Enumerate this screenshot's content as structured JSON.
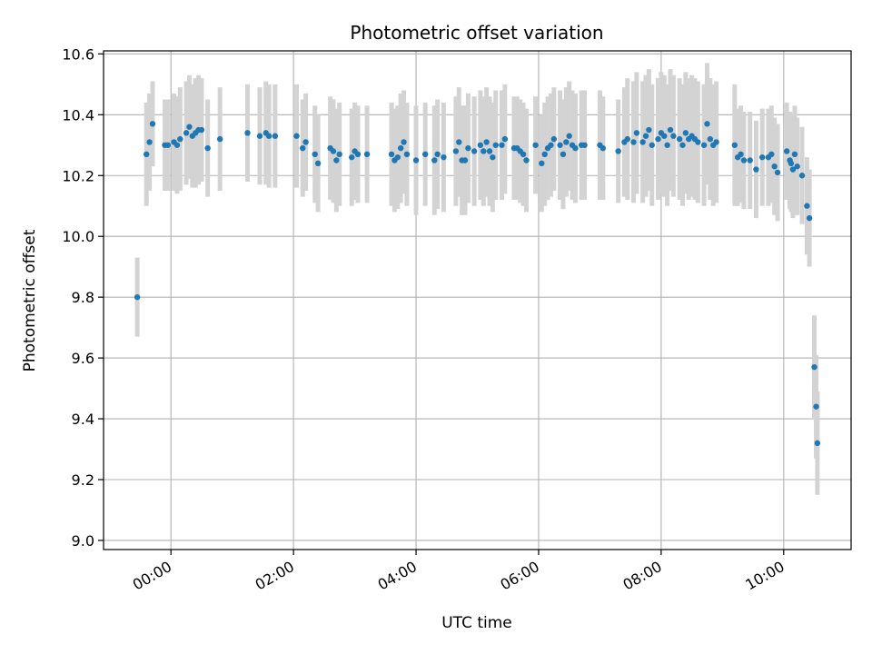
{
  "chart_data": {
    "type": "scatter",
    "title": "Photometric offset variation",
    "xlabel": "UTC time",
    "ylabel": "Photometric offset",
    "grid": true,
    "x_unit": "hours (UTC, relative to 00:00)",
    "xlim": [
      -1.1,
      11.1
    ],
    "ylim": [
      8.97,
      10.61
    ],
    "x_ticks": [
      0,
      2,
      4,
      6,
      8,
      10
    ],
    "x_tick_labels": [
      "00:00",
      "02:00",
      "04:00",
      "06:00",
      "08:00",
      "10:00"
    ],
    "y_ticks": [
      9.0,
      9.2,
      9.4,
      9.6,
      9.8,
      10.0,
      10.2,
      10.4,
      10.6
    ],
    "y_tick_labels": [
      "9.0",
      "9.2",
      "9.4",
      "9.6",
      "9.8",
      "10.0",
      "10.2",
      "10.4",
      "10.6"
    ],
    "colors": {
      "marker": "#1f77b4",
      "errorbar": "#d3d3d3",
      "grid": "#b0b0b0",
      "axis": "#000000"
    },
    "series": [
      {
        "name": "photometric offset",
        "x": [
          -0.55,
          -0.4,
          -0.35,
          -0.3,
          -0.1,
          -0.05,
          0.05,
          0.1,
          0.15,
          0.25,
          0.3,
          0.35,
          0.4,
          0.45,
          0.5,
          0.6,
          0.8,
          1.25,
          1.45,
          1.55,
          1.6,
          1.7,
          2.05,
          2.15,
          2.2,
          2.35,
          2.4,
          2.6,
          2.65,
          2.7,
          2.75,
          2.95,
          3.0,
          3.05,
          3.2,
          3.6,
          3.65,
          3.7,
          3.75,
          3.8,
          3.85,
          4.0,
          4.15,
          4.3,
          4.35,
          4.45,
          4.65,
          4.7,
          4.75,
          4.8,
          4.85,
          4.95,
          5.05,
          5.1,
          5.15,
          5.2,
          5.25,
          5.3,
          5.4,
          5.45,
          5.6,
          5.65,
          5.7,
          5.75,
          5.8,
          5.95,
          6.05,
          6.1,
          6.15,
          6.2,
          6.25,
          6.35,
          6.4,
          6.45,
          6.5,
          6.55,
          6.6,
          6.7,
          6.75,
          7.0,
          7.05,
          7.3,
          7.4,
          7.45,
          7.55,
          7.6,
          7.7,
          7.75,
          7.8,
          7.85,
          7.95,
          8.0,
          8.05,
          8.1,
          8.15,
          8.2,
          8.3,
          8.35,
          8.4,
          8.45,
          8.5,
          8.55,
          8.6,
          8.7,
          8.75,
          8.8,
          8.85,
          8.9,
          9.2,
          9.25,
          9.3,
          9.35,
          9.45,
          9.55,
          9.65,
          9.75,
          9.8,
          9.85,
          9.9,
          10.05,
          10.1,
          10.12,
          10.15,
          10.18,
          10.22,
          10.3,
          10.38,
          10.42,
          10.5,
          10.53,
          10.55
        ],
        "y": [
          9.8,
          10.27,
          10.31,
          10.37,
          10.3,
          10.3,
          10.31,
          10.3,
          10.32,
          10.34,
          10.36,
          10.33,
          10.34,
          10.35,
          10.35,
          10.29,
          10.32,
          10.34,
          10.33,
          10.34,
          10.33,
          10.33,
          10.33,
          10.29,
          10.31,
          10.27,
          10.24,
          10.29,
          10.28,
          10.25,
          10.27,
          10.26,
          10.28,
          10.27,
          10.27,
          10.27,
          10.25,
          10.26,
          10.29,
          10.31,
          10.27,
          10.25,
          10.27,
          10.25,
          10.27,
          10.26,
          10.28,
          10.31,
          10.25,
          10.25,
          10.29,
          10.28,
          10.3,
          10.28,
          10.31,
          10.28,
          10.26,
          10.3,
          10.3,
          10.32,
          10.29,
          10.29,
          10.28,
          10.27,
          10.25,
          10.3,
          10.24,
          10.27,
          10.29,
          10.3,
          10.32,
          10.3,
          10.27,
          10.31,
          10.33,
          10.3,
          10.29,
          10.3,
          10.3,
          10.3,
          10.29,
          10.28,
          10.31,
          10.32,
          10.31,
          10.34,
          10.31,
          10.33,
          10.35,
          10.3,
          10.32,
          10.34,
          10.33,
          10.3,
          10.35,
          10.33,
          10.32,
          10.3,
          10.34,
          10.32,
          10.33,
          10.32,
          10.31,
          10.3,
          10.37,
          10.32,
          10.3,
          10.31,
          10.3,
          10.26,
          10.27,
          10.25,
          10.25,
          10.22,
          10.26,
          10.26,
          10.27,
          10.23,
          10.21,
          10.28,
          10.25,
          10.24,
          10.22,
          10.27,
          10.23,
          10.2,
          10.1,
          10.06,
          9.57,
          9.44,
          9.32
        ],
        "error": [
          0.13,
          0.17,
          0.16,
          0.14,
          0.15,
          0.15,
          0.16,
          0.16,
          0.17,
          0.17,
          0.17,
          0.17,
          0.18,
          0.18,
          0.17,
          0.16,
          0.17,
          0.16,
          0.16,
          0.17,
          0.17,
          0.17,
          0.17,
          0.16,
          0.16,
          0.16,
          0.16,
          0.17,
          0.17,
          0.17,
          0.17,
          0.16,
          0.16,
          0.16,
          0.16,
          0.17,
          0.17,
          0.17,
          0.18,
          0.17,
          0.17,
          0.18,
          0.17,
          0.18,
          0.18,
          0.18,
          0.18,
          0.18,
          0.18,
          0.18,
          0.18,
          0.18,
          0.18,
          0.18,
          0.18,
          0.18,
          0.18,
          0.18,
          0.18,
          0.18,
          0.17,
          0.17,
          0.17,
          0.17,
          0.17,
          0.16,
          0.16,
          0.17,
          0.17,
          0.17,
          0.17,
          0.18,
          0.18,
          0.18,
          0.18,
          0.18,
          0.18,
          0.18,
          0.18,
          0.18,
          0.17,
          0.17,
          0.18,
          0.2,
          0.2,
          0.2,
          0.2,
          0.2,
          0.2,
          0.2,
          0.2,
          0.2,
          0.2,
          0.2,
          0.2,
          0.2,
          0.2,
          0.2,
          0.2,
          0.2,
          0.2,
          0.2,
          0.2,
          0.2,
          0.2,
          0.2,
          0.2,
          0.2,
          0.2,
          0.16,
          0.16,
          0.16,
          0.16,
          0.16,
          0.16,
          0.16,
          0.16,
          0.16,
          0.16,
          0.16,
          0.16,
          0.16,
          0.16,
          0.16,
          0.16,
          0.16,
          0.16,
          0.16,
          0.17,
          0.17,
          0.17
        ]
      }
    ]
  }
}
